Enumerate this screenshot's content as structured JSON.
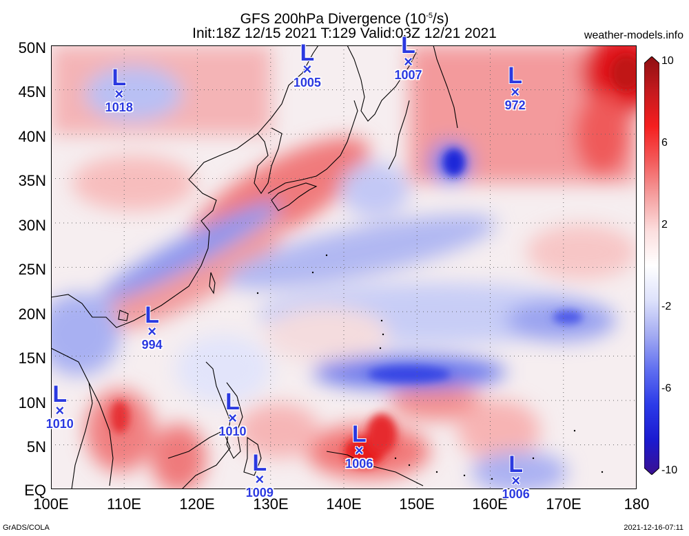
{
  "header": {
    "title_line1_a": "GFS 200hPa Divergence (10",
    "title_line1_sup": "-5",
    "title_line1_b": "/s)",
    "title_line2": "Init:18Z 12/15 2021 T:129 Valid:03Z 12/21 2021",
    "site": "weather-models.info"
  },
  "footer": {
    "left": "GrADS/COLA",
    "right": "2021-12-16-07:11"
  },
  "map": {
    "lat_labels": [
      "50N",
      "45N",
      "40N",
      "35N",
      "30N",
      "25N",
      "20N",
      "15N",
      "10N",
      "5N",
      "EQ"
    ],
    "lon_labels": [
      "100E",
      "110E",
      "120E",
      "130E",
      "140E",
      "150E",
      "160E",
      "170E",
      "180"
    ],
    "lat_range": [
      0,
      50
    ],
    "lon_range": [
      100,
      180
    ],
    "grid": true,
    "lows": [
      {
        "lon": 109.3,
        "lat": 44.6,
        "pressure": "1018"
      },
      {
        "lon": 135.0,
        "lat": 47.4,
        "pressure": "1005"
      },
      {
        "lon": 148.8,
        "lat": 48.2,
        "pressure": "1007"
      },
      {
        "lon": 163.4,
        "lat": 44.8,
        "pressure": "972"
      },
      {
        "lon": 113.8,
        "lat": 17.8,
        "pressure": "994"
      },
      {
        "lon": 101.2,
        "lat": 8.9,
        "pressure": "1010"
      },
      {
        "lon": 124.8,
        "lat": 8.1,
        "pressure": "1010"
      },
      {
        "lon": 128.5,
        "lat": 1.2,
        "pressure": "1009"
      },
      {
        "lon": 142.1,
        "lat": 4.4,
        "pressure": "1006"
      },
      {
        "lon": 163.5,
        "lat": 1.0,
        "pressure": "1006"
      }
    ]
  },
  "colorbar": {
    "labels": [
      "10",
      "6",
      "2",
      "-2",
      "-6",
      "-10"
    ],
    "colors": [
      "#8f0f12",
      "#c41a1e",
      "#f51f1f",
      "#f35b5b",
      "#f5a0a0",
      "#fcdede",
      "#ffffff",
      "#dde1fb",
      "#a3abf2",
      "#5f6ef0",
      "#2b3ae8",
      "#1a1ad0",
      "#3a1090"
    ]
  }
}
